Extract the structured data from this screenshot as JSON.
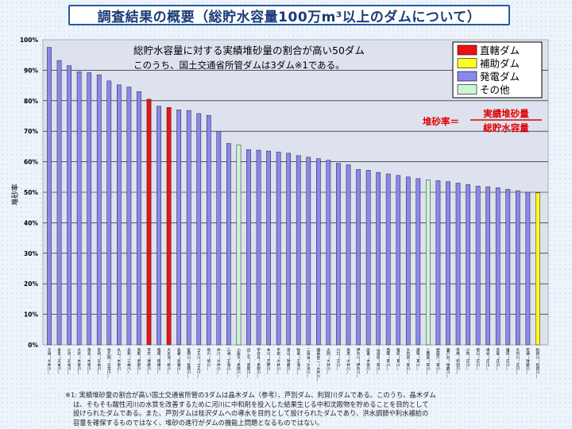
{
  "title": "調査結果の概要（総貯水容量100万m³以上のダムについて）",
  "chart_data": {
    "type": "bar",
    "title": "総貯水容量に対する実績堆砂量の割合が高い50ダム",
    "subtitle": "このうち、国土交通省所管ダムは3ダム※1である。",
    "ylabel": "堆砂率",
    "ylim": [
      0,
      100
    ],
    "yticks": [
      "0%",
      "10%",
      "20%",
      "30%",
      "40%",
      "50%",
      "60%",
      "70%",
      "80%",
      "90%",
      "100%"
    ],
    "legend": [
      {
        "key": "chokkatsu",
        "label": "直轄ダム",
        "color": "#ee1111"
      },
      {
        "key": "hojo",
        "label": "補助ダム",
        "color": "#ffff22"
      },
      {
        "key": "hatsuden",
        "label": "発電ダム",
        "color": "#8888ee"
      },
      {
        "key": "sonota",
        "label": "その他",
        "color": "#ccf5d8"
      }
    ],
    "formula": {
      "lhs": "堆砂率＝",
      "numerator": "実績堆砂量",
      "denominator": "総貯水容量"
    },
    "categories": [
      "千頭（大井川）",
      "泰阜（天竜川）",
      "小渋（天竜川）",
      "大井（木曽川）",
      "落合（木曽川）",
      "平岡（天竜川）",
      "佐久間（天竜川）",
      "丸山（木曽川）",
      "美和（三峰川）",
      "黒部（黒部川）",
      "市房（球磨川）",
      "雨畑（雨畑川）",
      "大正池（梓川）",
      "高瀬（高瀬川）",
      "笹間川（笹間川）",
      "寸又川（寸又川）",
      "境川（境川）",
      "井川（大井川）",
      "三浦（王滝川）",
      "小屋平（黒部川）",
      "出し平（黒部川）",
      "宇奈月（黒部川）",
      "本川（吉野川）",
      "平岩（大井川）",
      "湯山（球磨川）",
      "牧尾（王滝川）",
      "二風谷（沙流川）",
      "畑薙第二（大井川）",
      "大間（大井川）",
      "川口（玉川）",
      "奥泉（大井川）",
      "伊奈川（伊奈川）",
      "読書（木曽川）",
      "山須原（耳川）",
      "西郷（耳川）",
      "塚原（耳川）",
      "大内原（耳川）",
      "諸塚（耳川）",
      "上椎葉（耳川）",
      "岩屋戸（耳川）",
      "瀬戸石（球磨川）",
      "有峰（和田川）",
      "小牧（庄川）",
      "祖山（庄川）",
      "鳩谷（庄川）",
      "赤尾（庄川）",
      "椿原（庄川）",
      "大白川（庄川）",
      "荒瀬（球磨川）",
      "利賀川（利賀川）"
    ],
    "values": [
      97.5,
      93.2,
      91.5,
      89.5,
      89.2,
      88.5,
      86.5,
      85.2,
      84.5,
      83.0,
      80.5,
      78.2,
      77.8,
      77.0,
      76.8,
      75.8,
      75.2,
      70.0,
      66.0,
      65.5,
      64.0,
      63.8,
      63.5,
      63.2,
      62.8,
      62.0,
      61.5,
      61.0,
      60.5,
      59.5,
      59.0,
      57.5,
      57.2,
      56.5,
      56.0,
      55.5,
      55.0,
      54.5,
      54.0,
      53.8,
      53.5,
      53.0,
      52.5,
      52.0,
      51.8,
      51.5,
      51.0,
      50.5,
      50.0,
      49.8
    ],
    "types": [
      "hatsuden",
      "hatsuden",
      "hatsuden",
      "hatsuden",
      "hatsuden",
      "hatsuden",
      "hatsuden",
      "hatsuden",
      "hatsuden",
      "hatsuden",
      "chokkatsu",
      "hatsuden",
      "chokkatsu",
      "hatsuden",
      "hatsuden",
      "hatsuden",
      "hatsuden",
      "hatsuden",
      "hatsuden",
      "sonota",
      "hatsuden",
      "hatsuden",
      "hatsuden",
      "hatsuden",
      "hatsuden",
      "hatsuden",
      "hatsuden",
      "hatsuden",
      "hatsuden",
      "hatsuden",
      "hatsuden",
      "hatsuden",
      "hatsuden",
      "hatsuden",
      "hatsuden",
      "hatsuden",
      "hatsuden",
      "hatsuden",
      "sonota",
      "hatsuden",
      "hatsuden",
      "hatsuden",
      "hatsuden",
      "hatsuden",
      "hatsuden",
      "hatsuden",
      "hatsuden",
      "hatsuden",
      "hatsuden",
      "hojo"
    ],
    "grid": true,
    "legend_position": "top-right"
  },
  "footnote": [
    "※1: 実績堆砂量の割合が高い国土交通省所管の3ダムは晶木ダム（参考）、芦別ダム、利賀川ダムである。このうち、晶木ダム",
    "は、そもそも酸性河川の水質を改善するために河川に中和剤を投入した結果生じる中和沈殿物を貯めることを目的として",
    "設けられたダムである。また、芦別ダムは桂沢ダムへの導水を目的として設けられたダムであり、洪水調節や利水補給の",
    "容量を確保するものではなく、堆砂の進行がダムの機能上問題となるものではない。"
  ]
}
